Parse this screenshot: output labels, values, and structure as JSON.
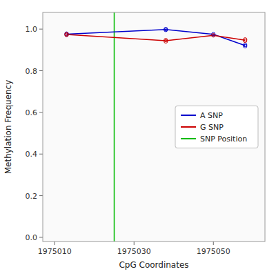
{
  "chart_data": {
    "type": "line",
    "xlabel": "CpG Coordinates",
    "ylabel": "Methylation Frequency",
    "xlim": [
      1975007,
      1975063
    ],
    "ylim": [
      -0.02,
      1.08
    ],
    "xticks": [
      1975010,
      1975030,
      1975050
    ],
    "yticks": [
      {
        "value": 0.0,
        "label": "0.0"
      },
      0.2,
      0.4,
      0.6,
      0.8,
      {
        "value": 1.0,
        "label": "1.0"
      }
    ],
    "grid": false,
    "legend": "right",
    "series": [
      {
        "name": "A SNP",
        "type": "line",
        "line_style": "solid",
        "color": "#0000cc",
        "x": [
          1975013,
          1975038,
          1975050,
          1975058
        ],
        "values": [
          0.9755,
          0.998,
          0.975,
          0.921
        ]
      },
      {
        "name": "G SNP",
        "type": "line",
        "line_style": "solid",
        "color": "#cc0000",
        "x": [
          1975013,
          1975038,
          1975050,
          1975058
        ],
        "values": [
          0.974,
          0.944,
          0.97,
          0.947
        ]
      },
      {
        "type": "scatter",
        "marker": "circle",
        "color": "#0000cc",
        "x": [
          1975013,
          1975013,
          1975038,
          1975038,
          1975050,
          1975058,
          1975058
        ],
        "values": [
          0.978,
          0.973,
          1.0,
          0.996,
          0.975,
          0.924,
          0.918
        ]
      },
      {
        "type": "scatter",
        "marker": "circle",
        "color": "#cc0000",
        "x": [
          1975013,
          1975013,
          1975038,
          1975038,
          1975050,
          1975058,
          1975058
        ],
        "values": [
          0.976,
          0.972,
          0.947,
          0.941,
          0.97,
          0.95,
          0.944
        ]
      },
      {
        "name": "SNP Position",
        "type": "vline",
        "line_style": "solid",
        "color": "#00bb00",
        "x": 1975025
      }
    ]
  }
}
